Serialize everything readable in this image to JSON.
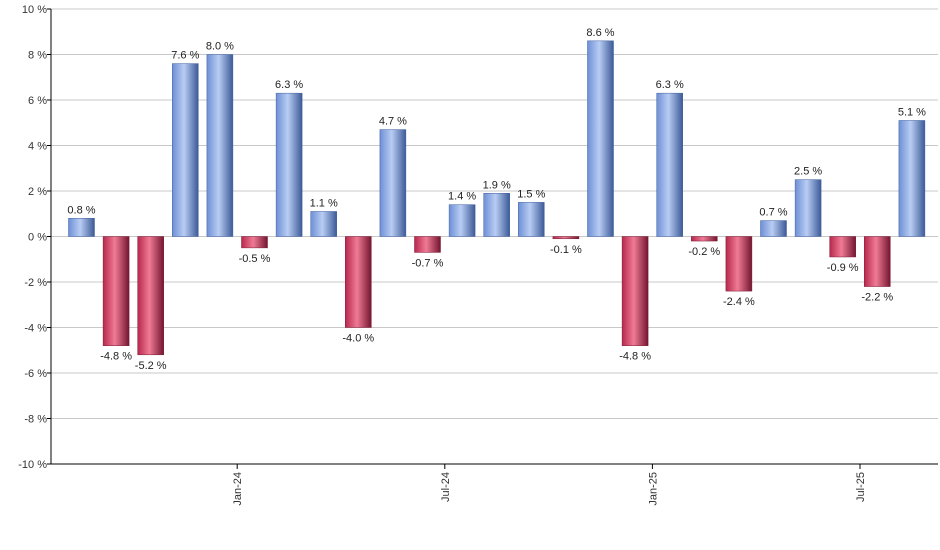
{
  "chart_data": {
    "type": "bar",
    "values": [
      0.8,
      -4.8,
      -5.2,
      7.6,
      8.0,
      -0.5,
      6.3,
      1.1,
      -4.0,
      4.7,
      -0.7,
      1.4,
      1.9,
      1.5,
      -0.1,
      8.6,
      -4.8,
      6.3,
      -0.2,
      -2.4,
      0.7,
      2.5,
      -0.9,
      -2.2,
      5.1
    ],
    "data_labels": [
      "0.8 %",
      "-4.8 %",
      "-5.2 %",
      "7.6 %",
      "8.0 %",
      "-0.5 %",
      "6.3 %",
      "1.1 %",
      "-4.0 %",
      "4.7 %",
      "-0.7 %",
      "1.4 %",
      "1.9 %",
      "1.5 %",
      "-0.1 %",
      "8.6 %",
      "-4.8 %",
      "6.3 %",
      "-0.2 %",
      "-2.4 %",
      "0.7 %",
      "2.5 %",
      "-0.9 %",
      "-2.2 %",
      "5.1 %"
    ],
    "ylim": [
      -10,
      10
    ],
    "y_ticks": [
      10,
      8,
      6,
      4,
      2,
      0,
      -2,
      -4,
      -6,
      -8,
      -10
    ],
    "y_tick_labels": [
      "10 %",
      "8 %",
      "6 %",
      "4 %",
      "2 %",
      "0 %",
      "-2 %",
      "-4 %",
      "-6 %",
      "-8 %",
      "-10 %"
    ],
    "x_ticks": [
      {
        "label": "Jan-24",
        "index": 5
      },
      {
        "label": "Jul-24",
        "index": 11
      },
      {
        "label": "Jan-25",
        "index": 17
      },
      {
        "label": "Jul-25",
        "index": 23
      }
    ],
    "grid": true,
    "colors": {
      "positive": "#7a9ee0",
      "positive_dark": "#3f5f9f",
      "negative": "#c8385a",
      "negative_dark": "#7a1a34",
      "grid": "#c8c8c8",
      "axis": "#000000"
    }
  }
}
